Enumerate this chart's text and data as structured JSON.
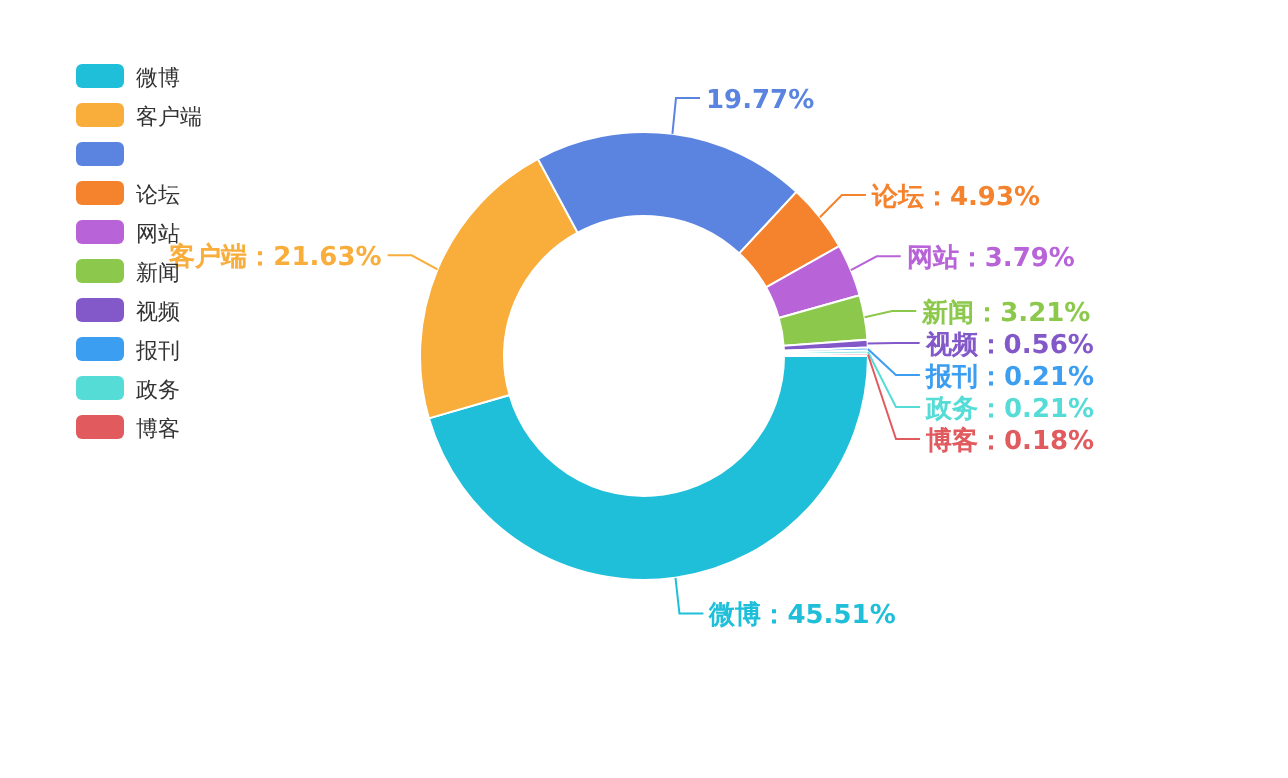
{
  "chart_data": {
    "type": "donut",
    "categories": [
      "微博",
      "客户端",
      null,
      "论坛",
      "网站",
      "新闻",
      "视频",
      "报刊",
      "政务",
      "博客"
    ],
    "values": [
      45.51,
      21.63,
      19.77,
      4.93,
      3.79,
      3.21,
      0.56,
      0.21,
      0.21,
      0.18
    ],
    "colors": [
      "#1fbfd9",
      "#f9ad3a",
      "#5b84e0",
      "#f5832e",
      "#b863d8",
      "#8cc84b",
      "#8358c9",
      "#3c9ef0",
      "#55dcd6",
      "#e05a5e"
    ],
    "value_labels": [
      "微博：45.51%",
      "客户端：21.63%",
      "19.77%",
      "论坛：4.93%",
      "网站：3.79%",
      "新闻：3.21%",
      "视频：0.56%",
      "报刊：0.21%",
      "政务：0.21%",
      "博客：0.18%"
    ],
    "legend": "top left"
  }
}
